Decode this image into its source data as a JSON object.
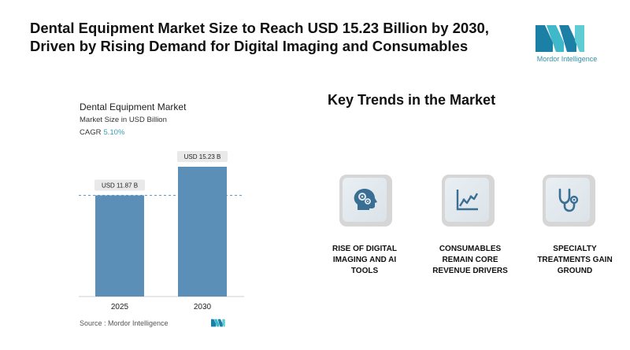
{
  "headline": {
    "line1": "Dental Equipment Market Size to Reach USD 15.23 Billion by 2030,",
    "line2": "Driven by Rising Demand for Digital Imaging and Consumables"
  },
  "brand": {
    "name_bold": "Mordor",
    "name_light": " Intelligence",
    "color": "#2f8fa6"
  },
  "chart_data": {
    "type": "bar",
    "title": "Dental Equipment Market",
    "subtitle": "Market Size in USD Billion",
    "cagr_label": "CAGR",
    "cagr_value": "5.10%",
    "categories": [
      "2025",
      "2030"
    ],
    "values": [
      11.87,
      15.23
    ],
    "data_labels": [
      "USD 11.87 B",
      "USD 15.23 B"
    ],
    "ylim": [
      0,
      15.23
    ],
    "reference_line_at": 11.87,
    "grid": false,
    "bar_color": "#5b8fb8"
  },
  "source": "Source :  Mordor Intelligence",
  "trends": {
    "title": "Key Trends in the Market",
    "items": [
      {
        "icon": "brain-gears-icon",
        "line1": "RISE OF DIGITAL",
        "line2": "IMAGING AND AI",
        "line3": "TOOLS"
      },
      {
        "icon": "line-chart-icon",
        "line1": "CONSUMABLES",
        "line2": "REMAIN CORE",
        "line3": "REVENUE DRIVERS"
      },
      {
        "icon": "stethoscope-icon",
        "line1": "SPECIALTY",
        "line2": "TREATMENTS GAIN",
        "line3": "GROUND"
      }
    ]
  }
}
